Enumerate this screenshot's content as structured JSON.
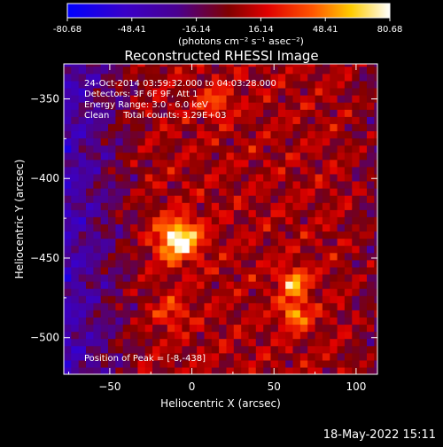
{
  "chart_data": {
    "type": "heatmap",
    "title": "Reconstructed RHESSI Image",
    "xlabel": "Heliocentric X (arcsec)",
    "ylabel": "Heliocentric Y (arcsec)",
    "xlim": [
      -78,
      113
    ],
    "ylim": [
      -523,
      -328
    ],
    "x_ticks": [
      -50,
      0,
      50,
      100
    ],
    "y_ticks": [
      -350,
      -400,
      -450,
      -500
    ],
    "colorbar": {
      "min": -80.68,
      "max": 80.68,
      "ticks": [
        -80.68,
        -48.41,
        -16.14,
        16.14,
        48.41,
        80.68
      ],
      "tick_labels": [
        "-80.68",
        "-48.41",
        "-16.14",
        "16.14",
        "48.41",
        "80.68"
      ],
      "unit_label": "(photons cm⁻² s⁻¹ asec⁻²)",
      "colormap": "purple-red-yellow-white"
    },
    "annotations": [
      "24-Oct-2014 03:59:32.000 to 04:03:28.000",
      "Detectors: 3F 6F 9F, Att 1",
      "Energy Range: 3.0 - 6.0 keV",
      "Clean     Total counts: 3.29E+03"
    ],
    "peak_label": "Position of Peak = [-8,-438]",
    "peak": {
      "x": -8,
      "y": -438,
      "value": 80.68
    },
    "sources": [
      {
        "x": -8,
        "y": -438,
        "value": 80.68
      },
      {
        "x": 62,
        "y": -465,
        "value": 52
      },
      {
        "x": 63,
        "y": -485,
        "value": 48
      },
      {
        "x": 15,
        "y": -352,
        "value": 35
      },
      {
        "x": -12,
        "y": -484,
        "value": 30
      }
    ]
  },
  "footer": {
    "date": "18-May-2022 15:11"
  }
}
